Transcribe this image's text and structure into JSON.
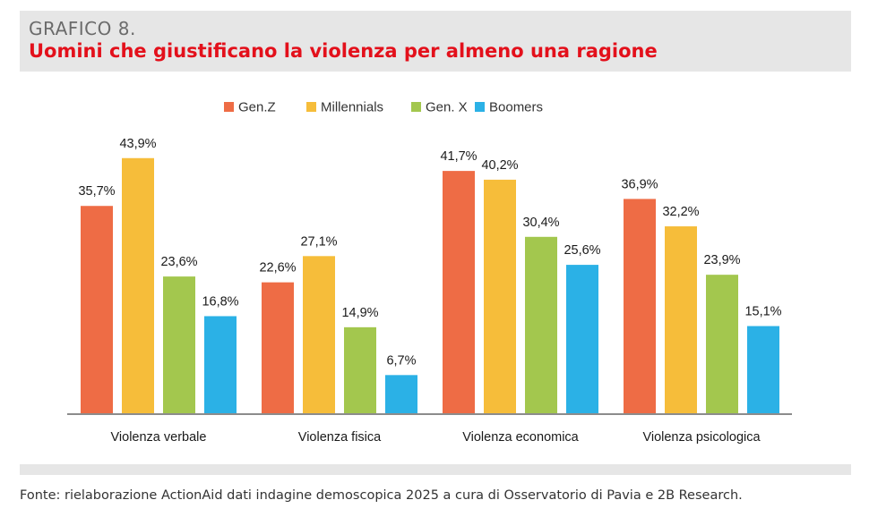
{
  "header": {
    "label": "GRAFICO 8.",
    "title": "Uomini che giustificano la violenza per almeno una ragione"
  },
  "chart_data": {
    "type": "bar",
    "categories": [
      "Violenza verbale",
      "Violenza fisica",
      "Violenza economica",
      "Violenza psicologica"
    ],
    "series": [
      {
        "name": "Gen.Z",
        "color": "#ee6c45",
        "values": [
          35.7,
          22.6,
          41.7,
          36.9
        ],
        "labels": [
          "35,7%",
          "22,6%",
          "41,7%",
          "36,9%"
        ]
      },
      {
        "name": "Millennials",
        "color": "#f6bd3a",
        "values": [
          43.9,
          27.1,
          40.2,
          32.2
        ],
        "labels": [
          "43,9%",
          "27,1%",
          "40,2%",
          "32,2%"
        ]
      },
      {
        "name": "Gen. X",
        "color": "#a3c74e",
        "values": [
          23.6,
          14.9,
          30.4,
          23.9
        ],
        "labels": [
          "23,6%",
          "14,9%",
          "30,4%",
          "23,9%"
        ]
      },
      {
        "name": "Boomers",
        "color": "#2bb1e6",
        "values": [
          16.8,
          6.7,
          25.6,
          15.1
        ],
        "labels": [
          "16,8%",
          "6,7%",
          "25,6%",
          "15,1%"
        ]
      }
    ],
    "ylim": [
      0,
      50
    ],
    "grid": false,
    "legend_position": "top-center"
  },
  "footer": {
    "source": "Fonte: rielaborazione ActionAid dati indagine demoscopica 2025 a cura di Osservatorio di Pavia e 2B Research."
  }
}
